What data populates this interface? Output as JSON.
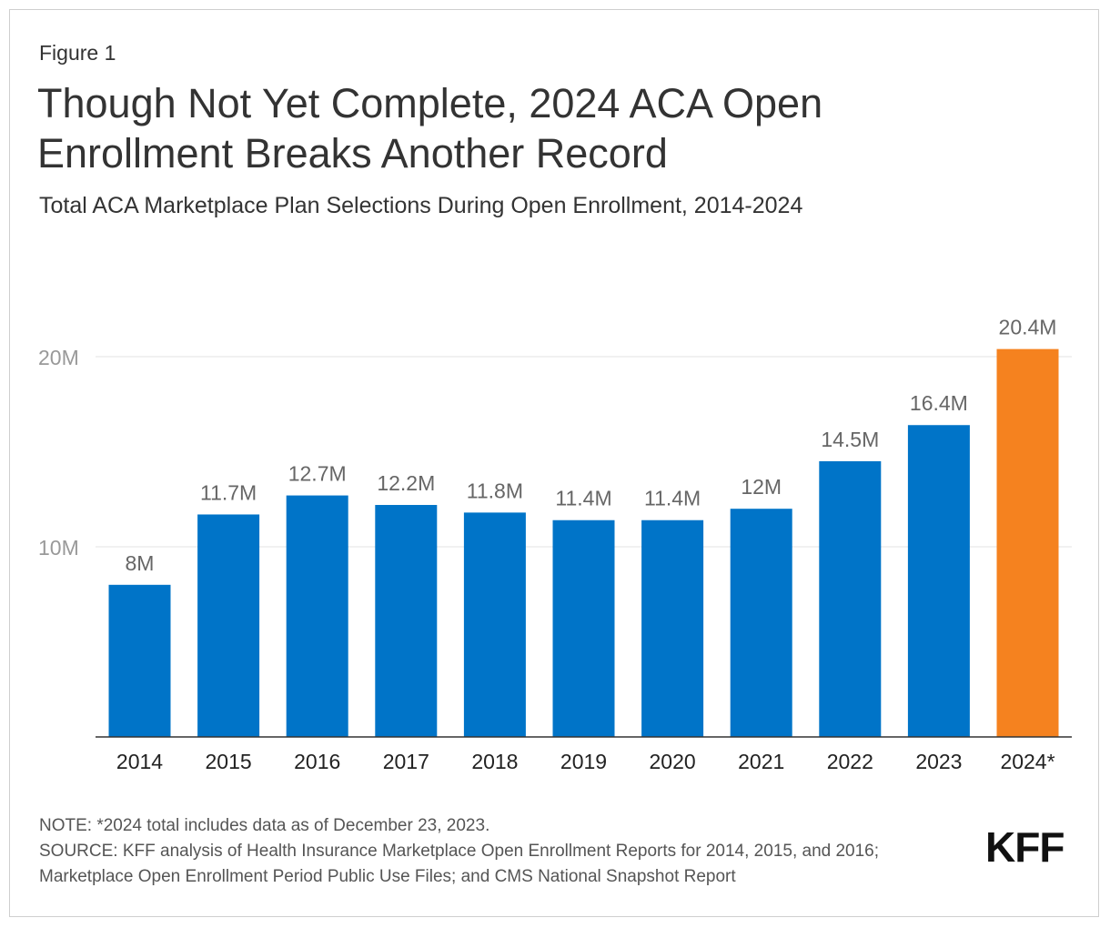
{
  "figure_label": "Figure 1",
  "title": "Though Not Yet Complete, 2024 ACA Open Enrollment Breaks Another Record",
  "subtitle": "Total ACA Marketplace Plan Selections During Open Enrollment, 2014-2024",
  "note": "NOTE: *2024 total includes data as of December 23, 2023.",
  "source": "SOURCE: KFF analysis of Health Insurance Marketplace Open Enrollment Reports for 2014, 2015, and 2016; Marketplace Open Enrollment Period Public Use Files; and CMS National Snapshot Report",
  "logo_text": "KFF",
  "colors": {
    "bar": "#0074c8",
    "highlight": "#f5821f",
    "grid": "#e3e3e3",
    "axis": "#333333",
    "tick_label": "#999999",
    "data_label": "#666666"
  },
  "chart_data": {
    "type": "bar",
    "categories": [
      "2014",
      "2015",
      "2016",
      "2017",
      "2018",
      "2019",
      "2020",
      "2021",
      "2022",
      "2023",
      "2024*"
    ],
    "values": [
      8,
      11.7,
      12.7,
      12.2,
      11.8,
      11.4,
      11.4,
      12,
      14.5,
      16.4,
      20.4
    ],
    "value_labels": [
      "8M",
      "11.7M",
      "12.7M",
      "12.2M",
      "11.8M",
      "11.4M",
      "11.4M",
      "12M",
      "14.5M",
      "16.4M",
      "20.4M"
    ],
    "highlight_category": "2024*",
    "yticks": [
      10,
      20
    ],
    "ytick_labels": [
      "10M",
      "20M"
    ],
    "ylim": [
      0,
      20.4
    ],
    "grid": true,
    "xlabel": "",
    "ylabel": ""
  }
}
